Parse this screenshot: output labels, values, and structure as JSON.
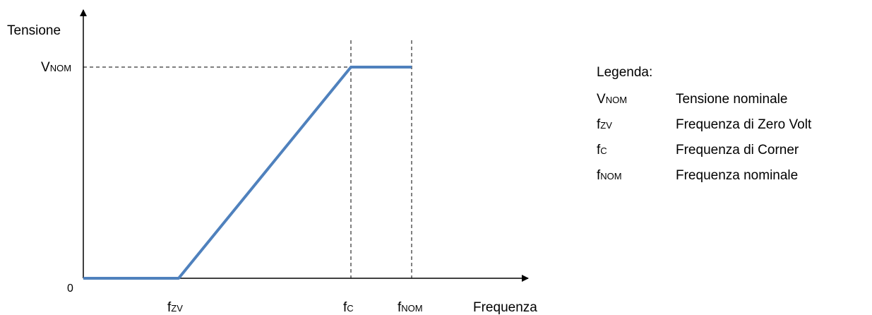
{
  "chart_data": {
    "type": "line",
    "title": "",
    "ylabel": "Tensione",
    "xlabel": "Frequenza",
    "origin_label": "0",
    "x_ticks": [
      {
        "key": "fzv",
        "base": "f",
        "sub": "ZV",
        "dashed_line": false
      },
      {
        "key": "fc",
        "base": "f",
        "sub": "C",
        "dashed_line": true
      },
      {
        "key": "fnom",
        "base": "f",
        "sub": "NOM",
        "dashed_line": true
      }
    ],
    "y_ticks": [
      {
        "key": "vnom",
        "base": "V",
        "sub": "NOM",
        "dashed_line": true
      }
    ],
    "series": [
      {
        "color": "#4F81BD",
        "points": [
          {
            "x": "0",
            "y": "0"
          },
          {
            "x": "fZV",
            "y": "0"
          },
          {
            "x": "fC",
            "y": "VNOM"
          },
          {
            "x": "fNOM",
            "y": "VNOM"
          }
        ]
      }
    ],
    "grid": false
  },
  "legend": {
    "title": "Legenda:",
    "items": [
      {
        "sym_base": "V",
        "sym_sub": "NOM",
        "desc": "Tensione nominale"
      },
      {
        "sym_base": "f",
        "sym_sub": "ZV",
        "desc": "Frequenza di Zero Volt"
      },
      {
        "sym_base": "f",
        "sym_sub": "C",
        "desc": "Frequenza di Corner"
      },
      {
        "sym_base": "f",
        "sym_sub": "NOM",
        "desc": "Frequenza nominale"
      }
    ]
  },
  "colors": {
    "axis": "#000000",
    "series": "#4F81BD",
    "guides": "#000000"
  }
}
